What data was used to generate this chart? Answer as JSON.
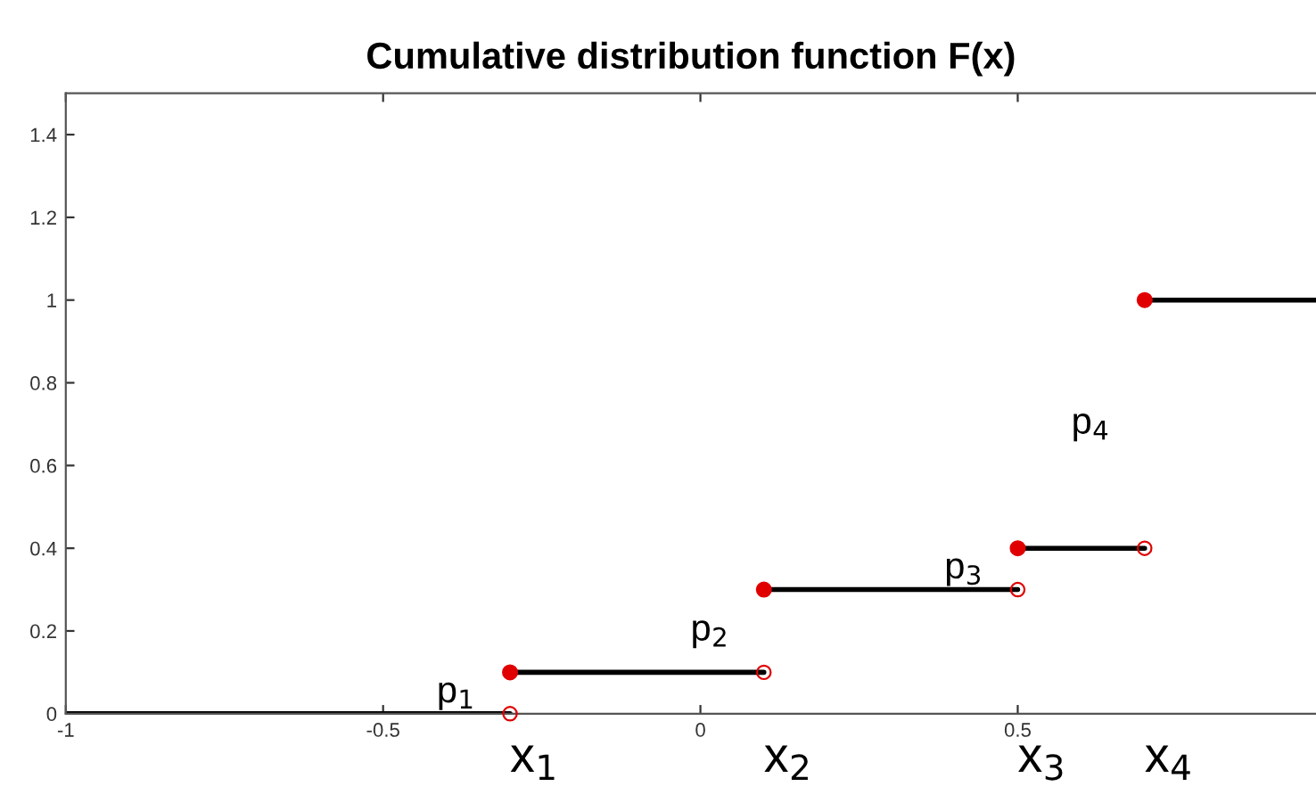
{
  "chart_data": {
    "type": "step",
    "title": "Cumulative distribution function F(x)",
    "series": [
      {
        "color": "#000000",
        "marker": "circle",
        "x": [
          -1,
          -0.3,
          0.1,
          0.5,
          0.7,
          0.97
        ],
        "values": [
          0,
          0.1,
          0.3,
          0.4,
          1,
          1
        ]
      },
      {
        "type": "scatter",
        "color": "#e00000",
        "marker": "circle",
        "x": [
          -0.3,
          0.1,
          0.5,
          0.7
        ],
        "values": [
          0,
          0.1,
          0.3,
          0.4
        ]
      }
    ],
    "annotations": [
      "p$_{1}$",
      "p$_{2}$",
      "p$_{3}$",
      "p$_{4}$",
      "x$_{1}$",
      "x$_{2}$",
      "x$_{3}$",
      "x$_{4}$"
    ],
    "xlim": [
      -1,
      0.97
    ],
    "ylim": [
      0,
      1.5
    ],
    "xticks": [
      -1,
      -0.5,
      0,
      0.5
    ],
    "yticks": [
      0,
      0.2,
      0.4,
      0.6,
      0.8,
      1,
      1.2,
      1.4
    ],
    "grid": false,
    "legend": false
  }
}
